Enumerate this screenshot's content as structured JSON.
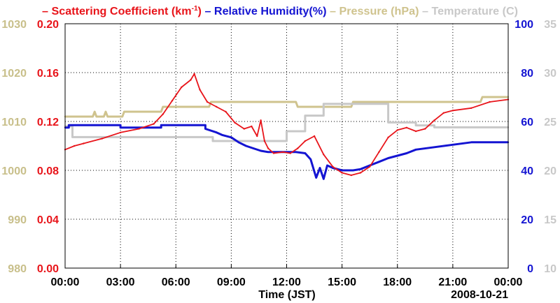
{
  "chart_data": {
    "type": "line",
    "legend": [
      {
        "name": "Scattering Coefficient (km-1)",
        "label_main": "Scattering Coefficient (km",
        "label_sup": "-1",
        "label_end": ")",
        "color": "#e8141a"
      },
      {
        "name": "Relative Humidity(%)",
        "label_main": "Relative Humidity(%)",
        "color": "#1414d2"
      },
      {
        "name": "Pressure (hPa)",
        "label_main": "Pressure (hPa)",
        "color": "#cfc38e"
      },
      {
        "name": "Temperature (C)",
        "label_main": "Temperature (C)",
        "color": "#c8c8c8"
      }
    ],
    "legend_dash": "–",
    "xlabel": "Time (JST)",
    "date_label": "2008-10-21",
    "xlim": [
      0,
      24
    ],
    "x_ticks": [
      0,
      3,
      6,
      9,
      12,
      15,
      18,
      21,
      24
    ],
    "x_tick_labels": [
      "00:00",
      "03:00",
      "06:00",
      "09:00",
      "12:00",
      "15:00",
      "18:00",
      "21:00",
      "00:00"
    ],
    "axes": {
      "pressure": {
        "range": [
          980,
          1030
        ],
        "ticks": [
          "980",
          "990",
          "1000",
          "1010",
          "1020",
          "1030"
        ],
        "color": "#c8bf8a"
      },
      "scattering": {
        "range": [
          0.0,
          0.2
        ],
        "ticks": [
          "0.00",
          "0.04",
          "0.08",
          "0.12",
          "0.16",
          "0.20"
        ],
        "color": "#e8141a"
      },
      "humidity": {
        "range": [
          0,
          100
        ],
        "ticks": [
          "0",
          "20",
          "40",
          "60",
          "80",
          "100"
        ],
        "color": "#1414d2"
      },
      "temperature": {
        "range": [
          10,
          35
        ],
        "ticks": [
          "10",
          "15",
          "20",
          "25",
          "30",
          "35"
        ],
        "color": "#c8c8c8"
      }
    },
    "series": [
      {
        "name": "Scattering Coefficient",
        "axis": "scattering",
        "color": "#e8141a",
        "x": [
          0,
          0.5,
          1,
          2,
          3,
          4,
          4.8,
          5.3,
          5.8,
          6.3,
          6.8,
          7.0,
          7.3,
          7.7,
          8.2,
          8.7,
          9.2,
          9.7,
          10.1,
          10.4,
          10.6,
          10.8,
          11.0,
          11.3,
          11.8,
          12.2,
          12.6,
          13.0,
          13.5,
          14.0,
          14.5,
          15.0,
          15.5,
          16.0,
          16.5,
          17.0,
          17.5,
          18.0,
          18.5,
          19.0,
          19.5,
          20.0,
          20.5,
          21.0,
          22.0,
          23.0,
          24.0
        ],
        "values": [
          0.097,
          0.1,
          0.102,
          0.106,
          0.111,
          0.114,
          0.118,
          0.126,
          0.137,
          0.148,
          0.154,
          0.159,
          0.146,
          0.136,
          0.132,
          0.128,
          0.119,
          0.114,
          0.116,
          0.108,
          0.121,
          0.104,
          0.098,
          0.094,
          0.095,
          0.094,
          0.098,
          0.104,
          0.108,
          0.093,
          0.083,
          0.078,
          0.076,
          0.078,
          0.083,
          0.095,
          0.107,
          0.113,
          0.115,
          0.112,
          0.114,
          0.121,
          0.127,
          0.129,
          0.131,
          0.136,
          0.138
        ]
      },
      {
        "name": "Relative Humidity",
        "axis": "humidity",
        "color": "#1414d2",
        "x": [
          0,
          0.2,
          0.2,
          3.0,
          3.0,
          5.2,
          5.2,
          7.6,
          7.6,
          8.2,
          8.5,
          9.0,
          9.4,
          9.8,
          10.2,
          10.6,
          11.0,
          11.5,
          12.5,
          13.0,
          13.3,
          13.6,
          13.8,
          14.0,
          14.2,
          14.5,
          15.0,
          15.6,
          16.0,
          16.5,
          17.0,
          17.5,
          18.0,
          18.5,
          19.0,
          20.0,
          21.0,
          22.0,
          22.8,
          24.0
        ],
        "values": [
          57.5,
          57.5,
          58.5,
          58.5,
          57.5,
          57.5,
          58.5,
          58.5,
          57,
          55.5,
          54.5,
          53.5,
          51.5,
          50,
          49,
          48,
          47.5,
          47.5,
          47.5,
          47,
          44.5,
          37,
          41,
          36.5,
          42,
          41,
          40,
          40,
          40.5,
          42,
          43.5,
          45,
          46,
          47,
          48.5,
          49.5,
          50.5,
          51.5,
          51.5,
          51.5
        ]
      },
      {
        "name": "Pressure",
        "axis": "pressure",
        "color": "#cfc38e",
        "x": [
          0,
          1.5,
          1.6,
          1.7,
          2.1,
          2.2,
          2.3,
          3.1,
          3.2,
          5.2,
          5.3,
          7.8,
          7.9,
          12.5,
          12.6,
          15.5,
          15.6,
          22.5,
          22.6,
          24.0
        ],
        "values": [
          1011,
          1011,
          1012,
          1011,
          1011,
          1012,
          1011,
          1011,
          1012,
          1012,
          1013,
          1013,
          1014,
          1014,
          1013,
          1013,
          1014,
          1014,
          1015,
          1015
        ]
      },
      {
        "name": "Temperature",
        "axis": "temperature",
        "color": "#c8c8c8",
        "x": [
          0,
          0.4,
          0.4,
          8.0,
          8.0,
          12.0,
          12.0,
          13.0,
          13.0,
          14.0,
          14.0,
          16.5,
          16.5,
          17.5,
          17.5,
          19.0,
          19.0,
          20.0,
          20.0,
          24.0
        ],
        "values": [
          24.5,
          24.5,
          23.4,
          23.4,
          23.0,
          23.0,
          24.0,
          24.0,
          25.6,
          25.6,
          26.8,
          26.8,
          26.8,
          26.8,
          24.9,
          24.9,
          24.6,
          24.6,
          24.4,
          24.4
        ]
      }
    ],
    "grid": true
  }
}
